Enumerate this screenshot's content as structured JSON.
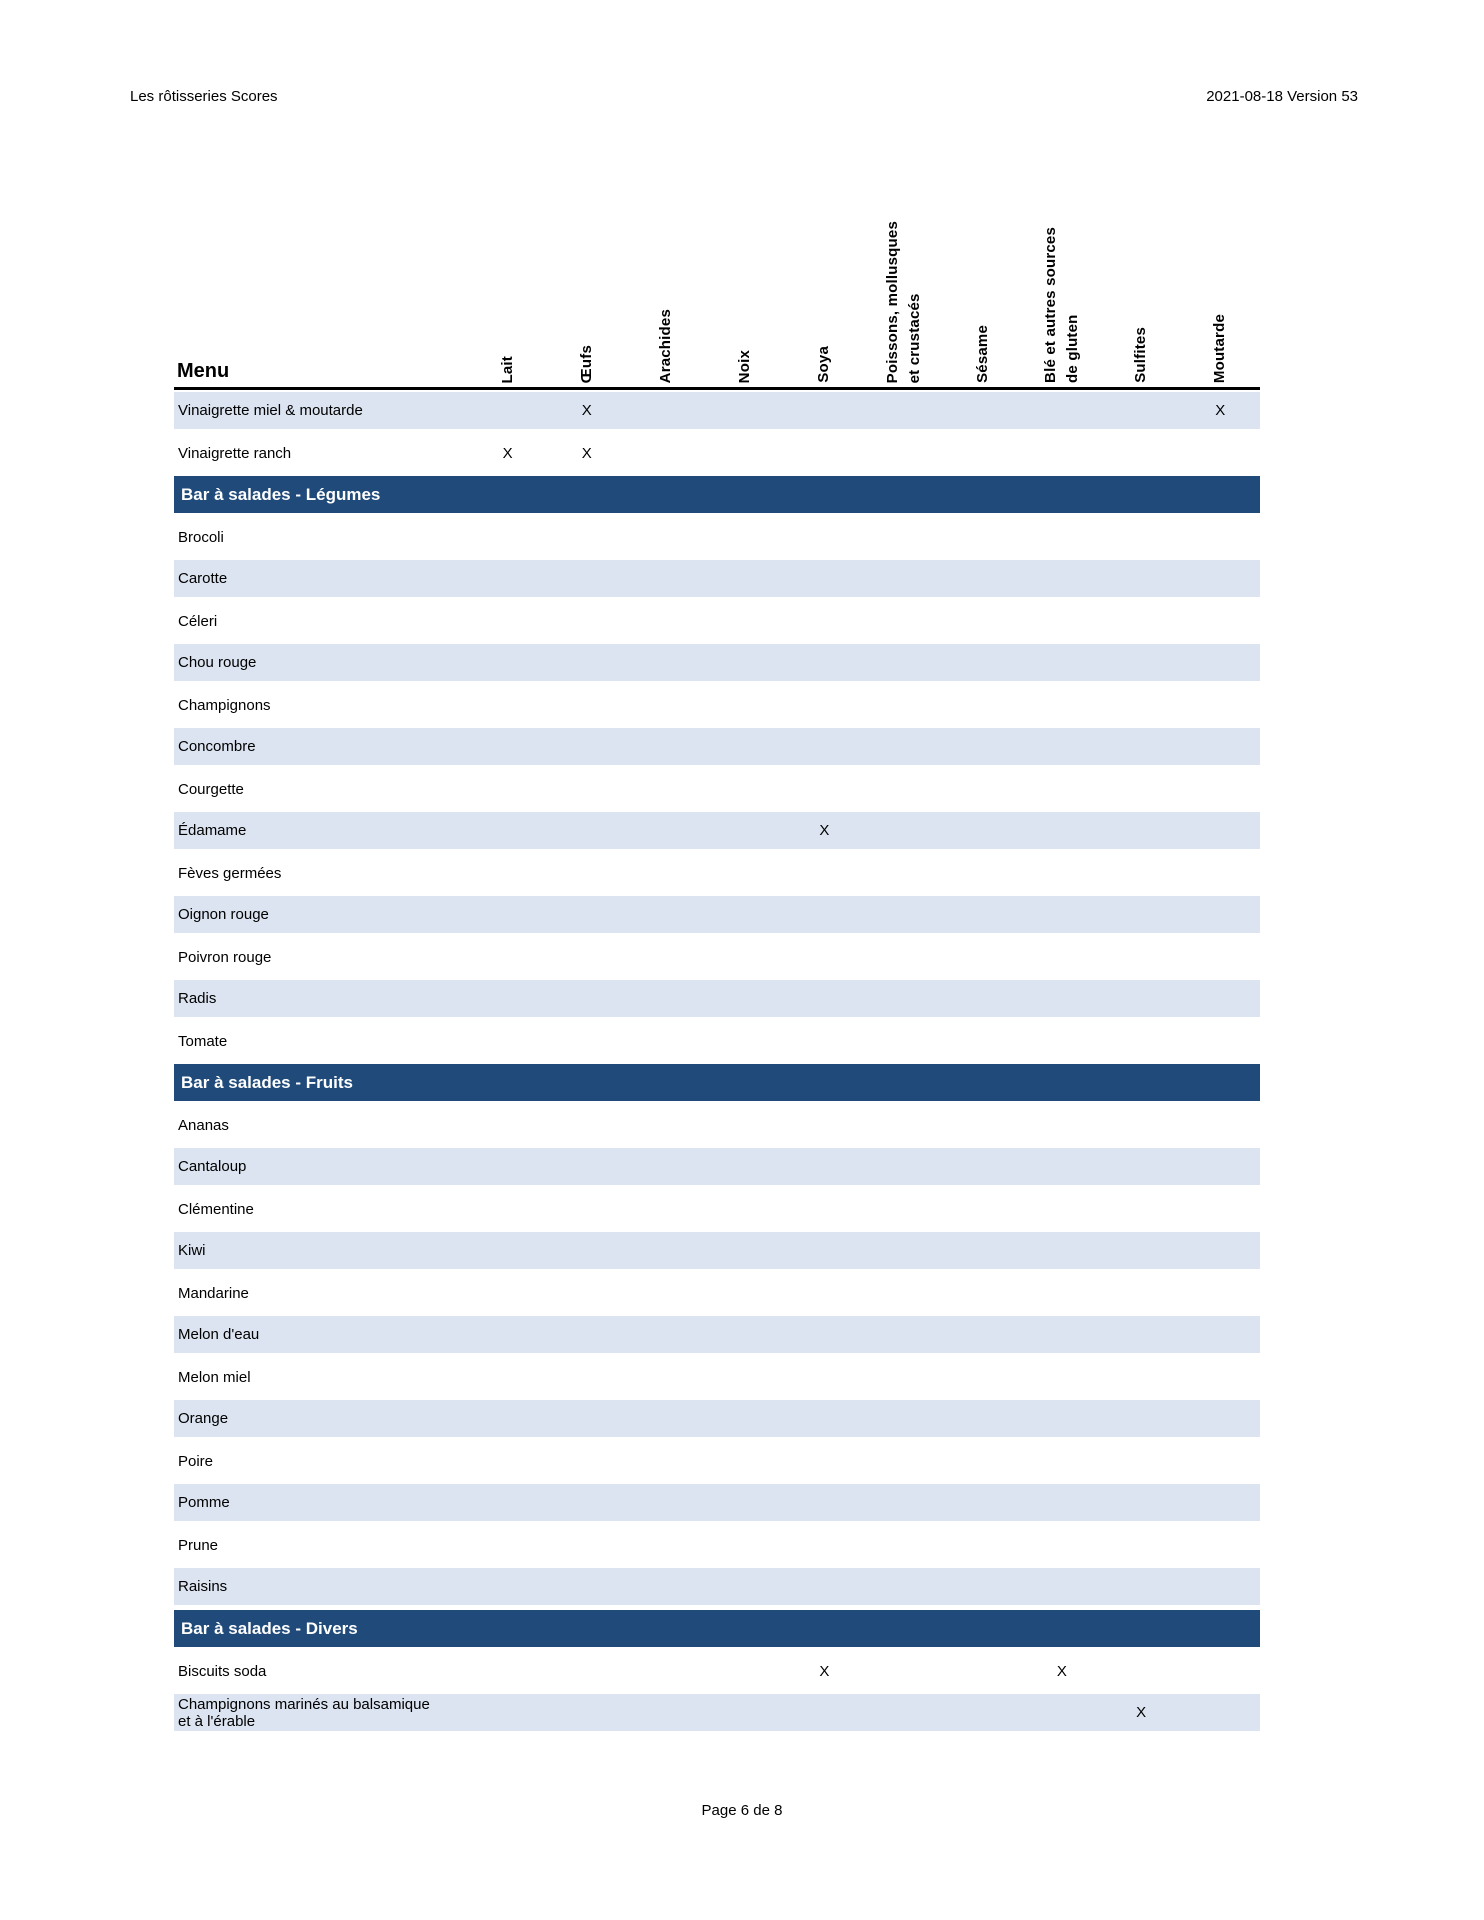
{
  "colors": {
    "navy": "#1f4a7a",
    "row_blue": "#dbe4f0"
  },
  "page": {
    "header_left": "Les rôtisseries Scores",
    "header_right": "2021-08-18 Version 53",
    "footer": "Page 6 de 8"
  },
  "table": {
    "menu_label": "Menu",
    "mark": "X",
    "columns": [
      "Lait",
      "Œufs",
      "Arachides",
      "Noix",
      "Soya",
      "Poissons, mollusques\net crustacés",
      "Sésame",
      "Blé et autres sources\nde gluten",
      "Sulfites",
      "Moutarde"
    ],
    "rows": [
      {
        "type": "item",
        "label": "Vinaigrette miel & moutarde",
        "shaded": true,
        "marks": [
          1,
          9
        ]
      },
      {
        "type": "item",
        "label": "Vinaigrette ranch",
        "shaded": false,
        "marks": [
          0,
          1
        ]
      },
      {
        "type": "section",
        "label": "Bar à salades - Légumes"
      },
      {
        "type": "item",
        "label": "Brocoli",
        "shaded": false,
        "marks": []
      },
      {
        "type": "item",
        "label": "Carotte",
        "shaded": true,
        "marks": []
      },
      {
        "type": "item",
        "label": "Céleri",
        "shaded": false,
        "marks": []
      },
      {
        "type": "item",
        "label": "Chou rouge",
        "shaded": true,
        "marks": []
      },
      {
        "type": "item",
        "label": "Champignons",
        "shaded": false,
        "marks": []
      },
      {
        "type": "item",
        "label": "Concombre",
        "shaded": true,
        "marks": []
      },
      {
        "type": "item",
        "label": "Courgette",
        "shaded": false,
        "marks": []
      },
      {
        "type": "item",
        "label": "Édamame",
        "shaded": true,
        "marks": [
          4
        ]
      },
      {
        "type": "item",
        "label": "Fèves germées",
        "shaded": false,
        "marks": []
      },
      {
        "type": "item",
        "label": "Oignon rouge",
        "shaded": true,
        "marks": []
      },
      {
        "type": "item",
        "label": "Poivron rouge",
        "shaded": false,
        "marks": []
      },
      {
        "type": "item",
        "label": "Radis",
        "shaded": true,
        "marks": []
      },
      {
        "type": "item",
        "label": "Tomate",
        "shaded": false,
        "marks": []
      },
      {
        "type": "section",
        "label": "Bar à salades - Fruits"
      },
      {
        "type": "item",
        "label": "Ananas",
        "shaded": false,
        "marks": []
      },
      {
        "type": "item",
        "label": "Cantaloup",
        "shaded": true,
        "marks": []
      },
      {
        "type": "item",
        "label": "Clémentine",
        "shaded": false,
        "marks": []
      },
      {
        "type": "item",
        "label": "Kiwi",
        "shaded": true,
        "marks": []
      },
      {
        "type": "item",
        "label": "Mandarine",
        "shaded": false,
        "marks": []
      },
      {
        "type": "item",
        "label": "Melon d'eau",
        "shaded": true,
        "marks": []
      },
      {
        "type": "item",
        "label": "Melon miel",
        "shaded": false,
        "marks": []
      },
      {
        "type": "item",
        "label": "Orange",
        "shaded": true,
        "marks": []
      },
      {
        "type": "item",
        "label": "Poire",
        "shaded": false,
        "marks": []
      },
      {
        "type": "item",
        "label": "Pomme",
        "shaded": true,
        "marks": []
      },
      {
        "type": "item",
        "label": "Prune",
        "shaded": false,
        "marks": []
      },
      {
        "type": "item",
        "label": "Raisins",
        "shaded": true,
        "marks": []
      },
      {
        "type": "section",
        "label": "Bar à salades - Divers"
      },
      {
        "type": "item",
        "label": "Biscuits soda",
        "shaded": false,
        "marks": [
          4,
          7
        ]
      },
      {
        "type": "item",
        "label": "Champignons marinés au balsamique\net à l'érable",
        "shaded": true,
        "marks": [
          8
        ]
      }
    ]
  }
}
